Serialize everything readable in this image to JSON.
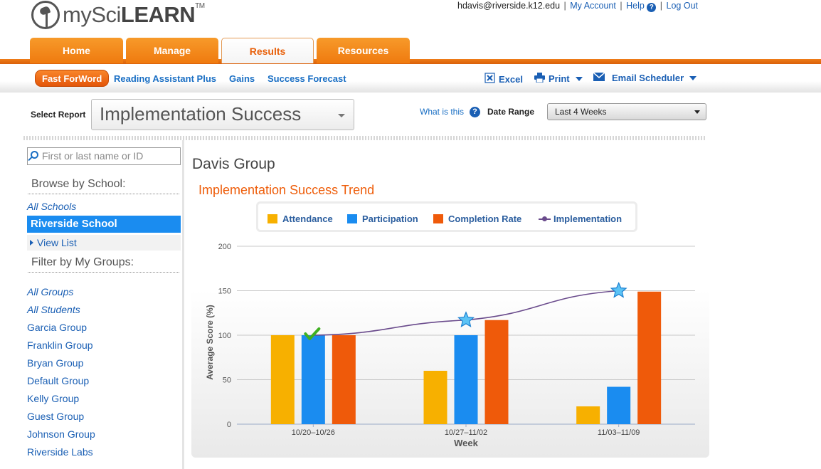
{
  "header": {
    "brand_thin": "mySci",
    "brand_bold": "LEARN",
    "trademark": "TM",
    "user_email": "hdavis@riverside.k12.edu",
    "my_account": "My Account",
    "help": "Help",
    "help_glyph": "?",
    "logout": "Log Out",
    "separator": "|"
  },
  "tabs": [
    {
      "label": "Home",
      "active": false
    },
    {
      "label": "Manage",
      "active": false
    },
    {
      "label": "Results",
      "active": true
    },
    {
      "label": "Resources",
      "active": false
    }
  ],
  "subnav": {
    "active": "Fast ForWord",
    "links": [
      "Reading Assistant Plus",
      "Gains",
      "Success Forecast"
    ],
    "tools": {
      "excel": "Excel",
      "print": "Print",
      "email": "Email Scheduler"
    }
  },
  "report_bar": {
    "select_label": "Select Report",
    "selected_report": "Implementation Success",
    "what_is": "What is this",
    "help_glyph": "?",
    "date_label": "Date Range",
    "date_value": "Last 4 Weeks"
  },
  "sidebar": {
    "search_placeholder": "First or last name or ID",
    "browse_heading": "Browse by School:",
    "all_schools": "All Schools",
    "selected_school": "Riverside School",
    "view_list": "View List",
    "filter_heading": "Filter by My Groups:",
    "groups": [
      "All Groups",
      "All Students",
      "Garcia Group",
      "Franklin Group",
      "Bryan Group",
      "Default Group",
      "Kelly Group",
      "Guest Group",
      "Johnson Group",
      "Riverside Labs"
    ]
  },
  "main": {
    "group_title": "Davis Group"
  },
  "colors": {
    "attendance": "#f7b000",
    "participation": "#1a8cf0",
    "completion": "#ef5a0a",
    "implementation": "#6a4b8c"
  },
  "chart_data": {
    "type": "bar",
    "title": "Implementation Success Trend",
    "xlabel": "Week",
    "ylabel": "Average Score (%)",
    "ylim": [
      0,
      200
    ],
    "yticks": [
      "0",
      "50",
      "100",
      "150",
      "200"
    ],
    "categories": [
      "10/20–10/26",
      "10/27–11/02",
      "11/03–11/09"
    ],
    "series": [
      {
        "name": "Attendance",
        "values": [
          100,
          60,
          20
        ]
      },
      {
        "name": "Participation",
        "values": [
          100,
          100,
          42
        ]
      },
      {
        "name": "Completion Rate",
        "values": [
          100,
          117,
          149
        ]
      }
    ],
    "line_series": {
      "name": "Implementation",
      "values": [
        100,
        117,
        150
      ],
      "markers": [
        "check-icon",
        "star-icon",
        "star-icon"
      ]
    },
    "grid": true,
    "legend": "top"
  }
}
